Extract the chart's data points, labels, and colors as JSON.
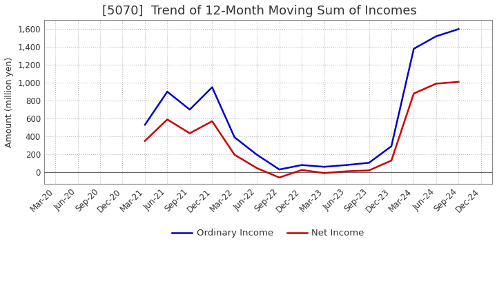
{
  "title": "[5070]  Trend of 12-Month Moving Sum of Incomes",
  "ylabel": "Amount (million yen)",
  "background_color": "#ffffff",
  "grid_color": "#bbbbbb",
  "x_labels": [
    "Mar-20",
    "Jun-20",
    "Sep-20",
    "Dec-20",
    "Mar-21",
    "Jun-21",
    "Sep-21",
    "Dec-21",
    "Mar-22",
    "Jun-22",
    "Sep-22",
    "Dec-22",
    "Mar-23",
    "Jun-23",
    "Sep-23",
    "Dec-23",
    "Mar-24",
    "Jun-24",
    "Sep-24",
    "Dec-24"
  ],
  "ordinary_income": [
    null,
    null,
    null,
    null,
    530,
    900,
    700,
    950,
    390,
    195,
    30,
    80,
    60,
    80,
    105,
    290,
    1380,
    1520,
    1600,
    null
  ],
  "net_income": [
    null,
    null,
    null,
    null,
    350,
    590,
    435,
    570,
    195,
    45,
    -60,
    25,
    -10,
    10,
    20,
    130,
    880,
    990,
    1010,
    null
  ],
  "ordinary_color": "#0000cc",
  "net_color": "#cc0000",
  "ylim_min": -130,
  "ylim_max": 1700,
  "yticks": [
    0,
    200,
    400,
    600,
    800,
    1000,
    1200,
    1400,
    1600
  ],
  "line_width": 1.8,
  "title_fontsize": 13,
  "axis_fontsize": 8.5,
  "ylabel_fontsize": 9,
  "legend_fontsize": 9.5
}
